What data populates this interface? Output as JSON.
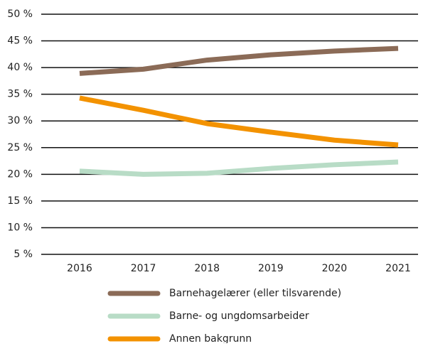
{
  "chart_data": {
    "type": "line",
    "categories": [
      "2016",
      "2017",
      "2018",
      "2019",
      "2020",
      "2021"
    ],
    "series": [
      {
        "name": "Barnehagelærer (eller tilsvarende)",
        "color": "#8b6b57",
        "values": [
          38.9,
          39.7,
          41.4,
          42.4,
          43.1,
          43.6
        ]
      },
      {
        "name": "Barne- og ungdomsarbeider",
        "color": "#b8dcc6",
        "values": [
          20.6,
          20.0,
          20.2,
          21.1,
          21.8,
          22.3
        ]
      },
      {
        "name": "Annen bakgrunn",
        "color": "#f39200",
        "values": [
          34.3,
          32.0,
          29.5,
          27.9,
          26.4,
          25.5
        ]
      }
    ],
    "ylim": [
      5,
      50
    ],
    "yticks": [
      {
        "value": 5,
        "label": "5 %"
      },
      {
        "value": 10,
        "label": "10 %"
      },
      {
        "value": 15,
        "label": "15 %"
      },
      {
        "value": 20,
        "label": "20 %"
      },
      {
        "value": 25,
        "label": "25 %"
      },
      {
        "value": 30,
        "label": "30 %"
      },
      {
        "value": 35,
        "label": "35 %"
      },
      {
        "value": 40,
        "label": "40 %"
      },
      {
        "value": 45,
        "label": "45 %"
      },
      {
        "value": 50,
        "label": "50 %"
      }
    ],
    "grid": true
  }
}
